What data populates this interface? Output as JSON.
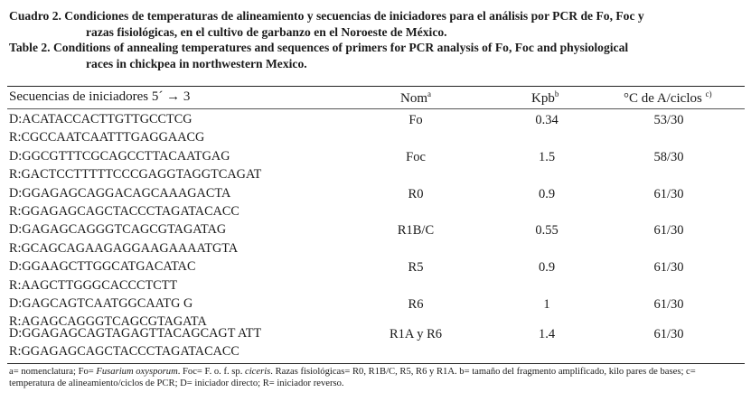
{
  "caption": {
    "es_line1": "Cuadro 2. Condiciones de temperaturas de alineamiento y secuencias de iniciadores para el análisis por PCR de Fo, Foc y",
    "es_line2": "razas fisiológicas, en el cultivo de garbanzo en el Noroeste de México.",
    "en_line1": "Table 2. Conditions of annealing temperatures and sequences of primers for PCR analysis of Fo, Foc and physiological",
    "en_line2": "races in chickpea in northwestern Mexico."
  },
  "table": {
    "headers": {
      "sequences": "Secuencias de iniciadores 5´ → 3",
      "nom": "Nom",
      "nom_sup": "a",
      "kpb": "Kpb",
      "kpb_sup": "b",
      "temp": "°C de A/ciclos",
      "temp_sup": "c)"
    },
    "rows": [
      {
        "d": "D:ACATACCACTTGTTGCCTCG",
        "r": "R:CGCCAATCAATTTGAGGAACG",
        "nom": "Fo",
        "kpb": "0.34",
        "temp": "53/30"
      },
      {
        "d": "D:GGCGTTTCGCAGCCTTACAATGAG",
        "r": "R:GACTCCTTTTTCCCGAGGTAGGTCAGAT",
        "nom": "Foc",
        "kpb": "1.5",
        "temp": "58/30"
      },
      {
        "d": "D:GGAGAGCAGGACAGCAAAGACTA",
        "r": "R:GGAGAGCAGCTACCCTAGATACACC",
        "nom": "R0",
        "kpb": "0.9",
        "temp": "61/30"
      },
      {
        "d": "D:GAGAGCAGGGTCAGCGTAGATAG",
        "r": "R:GCAGCAGAAGAGGAAGAAAATGTA",
        "nom": "R1B/C",
        "kpb": "0.55",
        "temp": "61/30"
      },
      {
        "d": "D:GGAAGCTTGGCATGACATAC",
        "r": "R:AAGCTTGGGCACCCTCTT",
        "nom": "R5",
        "kpb": "0.9",
        "temp": "61/30"
      },
      {
        "d": "D:GAGCAGTCAATGGCAATG G",
        "r": "R:AGAGCAGGGTCAGCGTAGATA",
        "nom": "R6",
        "kpb": "1",
        "temp": "61/30"
      },
      {
        "d": "D:GGAGAGCAGTAGAGTTACAGCAGT ATT",
        "r": "R:GGAGAGCAGCTACCCTAGATACACC",
        "nom": "R1A y R6",
        "kpb": "1.4",
        "temp": "61/30"
      }
    ]
  },
  "footnote": {
    "part1": "a= nomenclatura; Fo= ",
    "species": "Fusarium oxysporum",
    "part2": ". Foc= F. o. f. sp. ",
    "fsp": "ciceris",
    "part3": ". Razas fisiológicas= R0, R1B/C, R5, R6 y R1A. b= tamaño del fragmento amplificado, kilo pares de bases; c= temperatura de alineamiento/ciclos de PCR; D= iniciador directo; R= iniciador reverso."
  }
}
